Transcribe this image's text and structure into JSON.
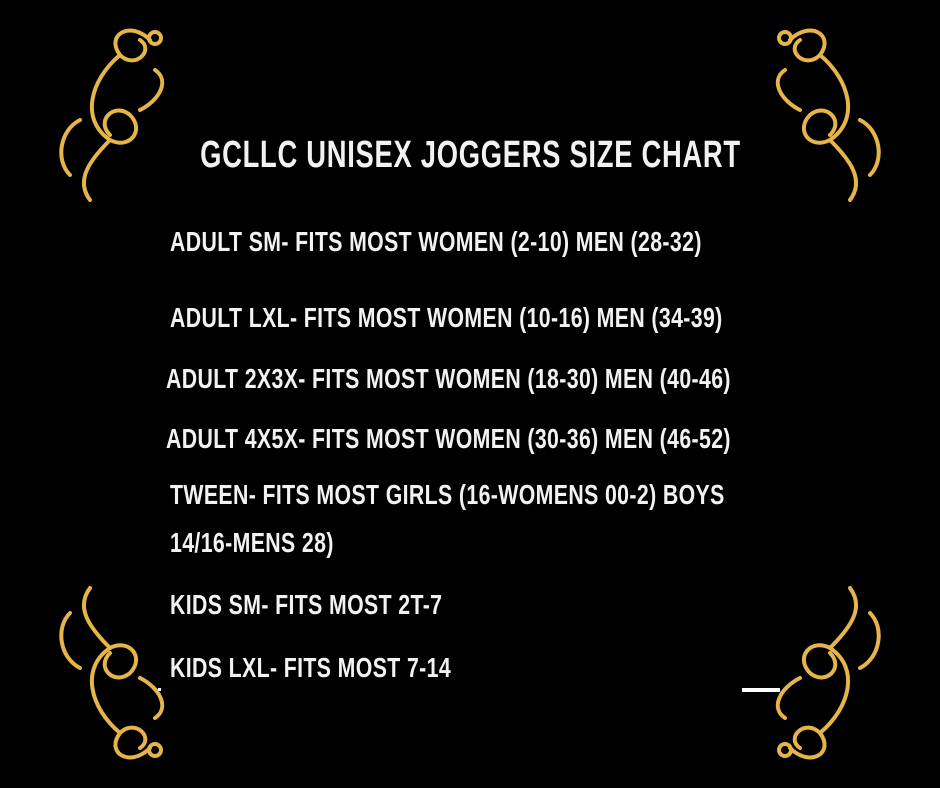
{
  "title": "GCLLC UNISEX JOGGERS SIZE CHART",
  "lines": [
    "ADULT SM- FITS MOST WOMEN (2-10) MEN (28-32)",
    "ADULT LXL- FITS MOST WOMEN (10-16) MEN (34-39)",
    "ADULT 2X3X- FITS MOST WOMEN (18-30) MEN (40-46)",
    "ADULT 4X5X- FITS MOST WOMEN (30-36) MEN (46-52)",
    "TWEEN- FITS MOST GIRLS (16-WOMENS 00-2) BOYS",
    "14/16-MENS 28)",
    "KIDS SM- FITS MOST 2T-7",
    "KIDS LXL- FITS MOST 7-14"
  ],
  "colors": {
    "background": "#000000",
    "text": "#f2f2f2",
    "ornament": "#e6b54a"
  },
  "icons": [
    "corner-flourish-ornament"
  ]
}
